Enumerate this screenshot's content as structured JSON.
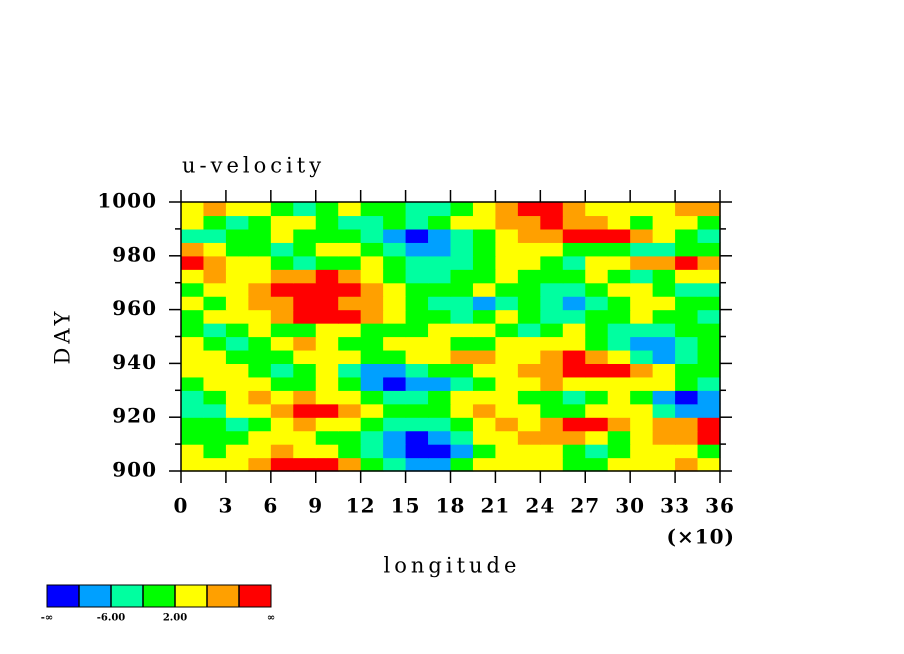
{
  "chart_data": {
    "type": "contour",
    "title": "u-velocity",
    "xlabel": "longitude",
    "ylabel": "DAY",
    "x_multiplier": "(×10)",
    "xlim": [
      0,
      36
    ],
    "xticks": [
      0,
      3,
      6,
      9,
      12,
      15,
      18,
      21,
      24,
      27,
      30,
      33,
      36
    ],
    "ylim": [
      900,
      1000
    ],
    "yticks": [
      900,
      920,
      940,
      960,
      980,
      1000
    ],
    "yminorticks": [
      910,
      930,
      950,
      970,
      990
    ],
    "x": [
      0.75,
      2.25,
      3.75,
      5.25,
      6.75,
      8.25,
      9.75,
      11.25,
      12.75,
      14.25,
      15.75,
      17.25,
      18.75,
      20.25,
      21.75,
      23.25,
      24.75,
      26.25,
      27.75,
      29.25,
      30.75,
      32.25,
      33.75,
      35.25
    ],
    "y": [
      902.5,
      907.5,
      912.5,
      917.5,
      922.5,
      927.5,
      932.5,
      937.5,
      942.5,
      947.5,
      952.5,
      957.5,
      962.5,
      967.5,
      972.5,
      977.5,
      982.5,
      987.5,
      992.5,
      997.5
    ],
    "z": [
      [
        3,
        4,
        5,
        9,
        11,
        12,
        11,
        6,
        1,
        -4,
        -8,
        -7,
        -2,
        2,
        4,
        5,
        3,
        1,
        0,
        3,
        5,
        4,
        7,
        3
      ],
      [
        2,
        1,
        3,
        5,
        6,
        4,
        2,
        0,
        -3,
        -8,
        -11,
        -12,
        -7,
        -1,
        3,
        5,
        2,
        -1,
        -3,
        0,
        2,
        4,
        3,
        1
      ],
      [
        0,
        -2,
        1,
        3,
        5,
        3,
        1,
        -2,
        -5,
        -10,
        -11,
        -8,
        -3,
        2,
        4,
        7,
        9,
        6,
        3,
        1,
        4,
        6,
        8,
        10
      ],
      [
        1,
        -1,
        -3,
        0,
        4,
        7,
        5,
        2,
        -1,
        -4,
        -6,
        -3,
        1,
        4,
        6,
        5,
        8,
        11,
        10,
        7,
        4,
        6,
        9,
        11
      ],
      [
        -6,
        -3,
        2,
        5,
        7,
        10,
        11,
        8,
        4,
        1,
        -2,
        0,
        3,
        6,
        5,
        3,
        1,
        -1,
        2,
        5,
        3,
        -3,
        -9,
        -7
      ],
      [
        -4,
        -1,
        3,
        6,
        4,
        7,
        5,
        2,
        -1,
        -3,
        -5,
        -2,
        2,
        5,
        3,
        1,
        -2,
        -4,
        -1,
        3,
        1,
        -8,
        -11,
        -9
      ],
      [
        1,
        3,
        5,
        2,
        -1,
        1,
        3,
        -2,
        -8,
        -11,
        -10,
        -9,
        -6,
        -2,
        2,
        4,
        6,
        5,
        4,
        2,
        5,
        3,
        -2,
        -5
      ],
      [
        3,
        5,
        2,
        -1,
        -3,
        0,
        2,
        -4,
        -7,
        -9,
        -5,
        -2,
        1,
        3,
        5,
        6,
        9,
        11,
        12,
        10,
        6,
        3,
        1,
        -2
      ],
      [
        4,
        2,
        0,
        -2,
        1,
        3,
        5,
        2,
        -1,
        1,
        3,
        5,
        7,
        6,
        4,
        5,
        8,
        10,
        7,
        4,
        -3,
        -8,
        -4,
        0
      ],
      [
        2,
        -1,
        -3,
        1,
        4,
        6,
        4,
        1,
        -2,
        2,
        5,
        3,
        1,
        -1,
        2,
        4,
        5,
        3,
        1,
        -4,
        -9,
        -10,
        -6,
        -2
      ],
      [
        -2,
        -4,
        0,
        3,
        1,
        -1,
        2,
        4,
        1,
        -2,
        0,
        3,
        5,
        2,
        -1,
        -3,
        -1,
        2,
        0,
        -3,
        -6,
        -5,
        -2,
        1
      ],
      [
        1,
        3,
        2,
        5,
        7,
        10,
        12,
        11,
        8,
        4,
        1,
        -2,
        -4,
        -1,
        2,
        0,
        -3,
        -5,
        -2,
        1,
        3,
        0,
        -2,
        -4
      ],
      [
        3,
        1,
        4,
        6,
        9,
        11,
        10,
        9,
        6,
        3,
        -1,
        -3,
        -5,
        -7,
        -4,
        -1,
        -6,
        -8,
        -4,
        0,
        2,
        4,
        1,
        -1
      ],
      [
        -1,
        2,
        5,
        8,
        10,
        12,
        11,
        10,
        7,
        3,
        0,
        -2,
        1,
        3,
        1,
        -2,
        -4,
        -3,
        0,
        2,
        4,
        1,
        -3,
        -5
      ],
      [
        4,
        6,
        3,
        5,
        8,
        9,
        10,
        7,
        4,
        1,
        -3,
        -5,
        -2,
        1,
        3,
        0,
        -2,
        1,
        3,
        -1,
        -3,
        -1,
        2,
        3
      ],
      [
        10,
        9,
        5,
        2,
        -1,
        -3,
        -2,
        1,
        3,
        0,
        -4,
        -6,
        -3,
        1,
        4,
        2,
        -1,
        -3,
        2,
        4,
        6,
        8,
        11,
        7
      ],
      [
        6,
        3,
        1,
        -2,
        -4,
        -1,
        2,
        4,
        1,
        -3,
        -7,
        -8,
        -4,
        0,
        3,
        5,
        2,
        -1,
        -2,
        1,
        -3,
        -5,
        -2,
        1
      ],
      [
        -3,
        -5,
        -2,
        1,
        3,
        0,
        -2,
        -1,
        -5,
        -9,
        -11,
        -10,
        -6,
        -1,
        3,
        6,
        8,
        10,
        12,
        11,
        7,
        3,
        -1,
        -3
      ],
      [
        2,
        0,
        -3,
        -1,
        2,
        4,
        1,
        -3,
        -5,
        -2,
        -4,
        -1,
        2,
        5,
        7,
        9,
        11,
        9,
        6,
        3,
        1,
        4,
        2,
        0
      ],
      [
        5,
        7,
        4,
        2,
        -1,
        -3,
        0,
        3,
        1,
        -2,
        -6,
        -3,
        0,
        4,
        7,
        10,
        11,
        8,
        4,
        2,
        5,
        3,
        6,
        9
      ]
    ],
    "colorbar": {
      "colors": [
        "#0000ff",
        "#00a0ff",
        "#00ffa0",
        "#00ff00",
        "#ffff00",
        "#ffa000",
        "#ff0000"
      ],
      "levels": [
        -10,
        -6,
        -2,
        2,
        6,
        10
      ],
      "level_labels": [
        {
          "value": -6,
          "label": "-6.00"
        },
        {
          "value": 2,
          "label": "2.00"
        }
      ],
      "end_labels": [
        "-∞",
        "∞"
      ]
    }
  }
}
